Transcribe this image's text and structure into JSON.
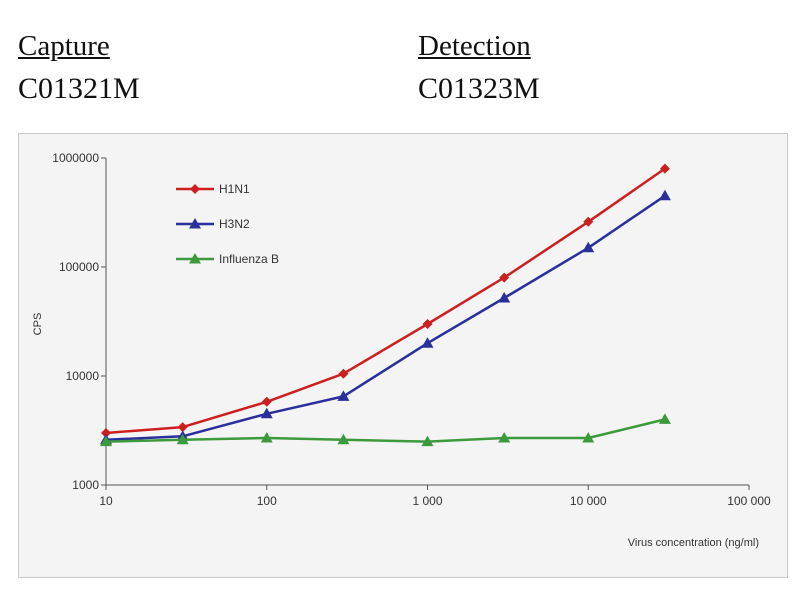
{
  "header": {
    "capture_label": "Capture",
    "capture_code": "C01321M",
    "detection_label": "Detection",
    "detection_code": "C01323M"
  },
  "chart_data": {
    "type": "line",
    "title": "",
    "xlabel": "Virus concentration (ng/ml)",
    "ylabel": "CPS",
    "x_scale": "log",
    "y_scale": "log",
    "xlim": [
      10,
      100000
    ],
    "ylim": [
      1000,
      1000000
    ],
    "x_ticks": [
      10,
      100,
      1000,
      10000,
      100000
    ],
    "x_tick_labels": [
      "10",
      "100",
      "1 000",
      "10 000",
      "100 000"
    ],
    "y_ticks": [
      1000,
      10000,
      100000,
      1000000
    ],
    "y_tick_labels": [
      "1000",
      "10000",
      "100000",
      "1000000"
    ],
    "grid": false,
    "legend_position": "top-left",
    "x": [
      10,
      30,
      100,
      300,
      1000,
      3000,
      10000,
      30000
    ],
    "series": [
      {
        "name": "H1N1",
        "color": "#cc1f1f",
        "marker": "diamond",
        "values": [
          3000,
          3400,
          5800,
          10500,
          30000,
          80000,
          260000,
          800000
        ]
      },
      {
        "name": "H3N2",
        "color": "#2a2f9e",
        "marker": "triangle",
        "values": [
          2600,
          2800,
          4500,
          6500,
          20000,
          52000,
          150000,
          450000
        ]
      },
      {
        "name": "Influenza B",
        "color": "#3c9a3c",
        "marker": "triangle",
        "values": [
          2500,
          2600,
          2700,
          2600,
          2500,
          2700,
          2700,
          4000
        ]
      }
    ]
  }
}
